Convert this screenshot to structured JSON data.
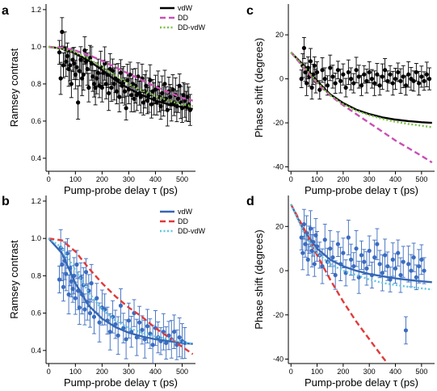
{
  "chart_data": [
    {
      "panel": "a",
      "type": "scatter",
      "xlabel": "Pump-probe delay τ (ps)",
      "ylabel": "Ramsey contrast",
      "xlim": [
        -10,
        550
      ],
      "ylim": [
        0.33,
        1.23
      ],
      "xticks": [
        0,
        100,
        200,
        300,
        400,
        500
      ],
      "yticks": [
        0.4,
        0.6,
        0.8,
        1.0,
        1.2
      ],
      "ytick_labels": [
        "0.4",
        "0.6",
        "0.8",
        "1.0",
        "1.2"
      ],
      "legend_position": "top-right",
      "marker_color": "#000000",
      "series": [
        {
          "name": "vdW",
          "color": "#000000",
          "dash": "solid",
          "x": [
            0,
            50,
            100,
            150,
            200,
            250,
            300,
            350,
            400,
            450,
            500,
            540
          ],
          "y": [
            1.0,
            0.99,
            0.965,
            0.925,
            0.875,
            0.82,
            0.775,
            0.74,
            0.71,
            0.69,
            0.675,
            0.665
          ]
        },
        {
          "name": "DD",
          "color": "#c94fb4",
          "dash": "dashed",
          "x": [
            0,
            50,
            100,
            150,
            200,
            250,
            300,
            350,
            400,
            450,
            500,
            540
          ],
          "y": [
            1.0,
            0.995,
            0.98,
            0.955,
            0.925,
            0.89,
            0.855,
            0.82,
            0.785,
            0.755,
            0.725,
            0.71
          ]
        },
        {
          "name": "DD-vdW",
          "color": "#7cc242",
          "dash": "dotted",
          "x": [
            0,
            50,
            100,
            150,
            200,
            250,
            300,
            350,
            400,
            450,
            500,
            540
          ],
          "y": [
            1.0,
            0.99,
            0.97,
            0.935,
            0.89,
            0.845,
            0.8,
            0.765,
            0.735,
            0.71,
            0.69,
            0.68
          ]
        }
      ],
      "points": {
        "x": [
          40,
          45,
          50,
          55,
          60,
          65,
          70,
          75,
          80,
          85,
          90,
          95,
          100,
          105,
          110,
          115,
          120,
          125,
          130,
          135,
          140,
          145,
          150,
          155,
          160,
          165,
          170,
          175,
          180,
          185,
          190,
          195,
          200,
          205,
          210,
          215,
          220,
          225,
          230,
          235,
          240,
          245,
          250,
          255,
          260,
          265,
          270,
          275,
          280,
          285,
          290,
          295,
          300,
          305,
          310,
          315,
          320,
          325,
          330,
          335,
          340,
          345,
          350,
          355,
          360,
          365,
          370,
          375,
          380,
          385,
          390,
          395,
          400,
          405,
          410,
          415,
          420,
          425,
          430,
          435,
          440,
          445,
          450,
          455,
          460,
          465,
          470,
          475,
          480,
          485,
          490,
          495,
          500,
          505,
          510,
          515,
          520,
          525,
          530
        ],
        "y": [
          0.97,
          0.83,
          1.08,
          0.9,
          0.99,
          0.92,
          0.95,
          0.88,
          0.9,
          0.8,
          0.93,
          0.91,
          0.85,
          0.89,
          0.7,
          0.87,
          0.93,
          0.83,
          0.85,
          0.98,
          0.92,
          0.88,
          0.78,
          0.94,
          0.91,
          0.84,
          0.8,
          0.78,
          0.83,
          0.86,
          0.79,
          0.89,
          0.78,
          0.86,
          0.91,
          0.8,
          0.85,
          0.75,
          0.88,
          0.78,
          0.87,
          0.8,
          0.83,
          0.76,
          0.82,
          0.73,
          0.86,
          0.79,
          0.81,
          0.76,
          0.67,
          0.82,
          0.77,
          0.85,
          0.74,
          0.8,
          0.72,
          0.79,
          0.74,
          0.84,
          0.75,
          0.73,
          0.83,
          0.7,
          0.76,
          0.79,
          0.71,
          0.74,
          0.82,
          0.69,
          0.76,
          0.72,
          0.77,
          0.7,
          0.78,
          0.73,
          0.68,
          0.75,
          0.71,
          0.8,
          0.72,
          0.66,
          0.76,
          0.73,
          0.69,
          0.77,
          0.7,
          0.74,
          0.68,
          0.72,
          0.79,
          0.7,
          0.67,
          0.74,
          0.71,
          0.68,
          0.73,
          0.69,
          0.66
        ],
        "err": 0.08
      }
    },
    {
      "panel": "b",
      "type": "scatter",
      "xlabel": "Pump-probe delay τ (ps)",
      "ylabel": "Ramsey contrast",
      "xlim": [
        -10,
        550
      ],
      "ylim": [
        0.33,
        1.23
      ],
      "xticks": [
        0,
        100,
        200,
        300,
        400,
        500
      ],
      "yticks": [
        0.4,
        0.6,
        0.8,
        1.0,
        1.2
      ],
      "ytick_labels": [
        "0.4",
        "0.6",
        "0.8",
        "1.0",
        "1.2"
      ],
      "legend_position": "top-right",
      "marker_color": "#3a6cc0",
      "series": [
        {
          "name": "vdW",
          "color": "#3467b5",
          "dash": "solid",
          "x": [
            0,
            50,
            100,
            150,
            200,
            250,
            300,
            350,
            400,
            450,
            500,
            540
          ],
          "y": [
            1.0,
            0.92,
            0.76,
            0.64,
            0.57,
            0.525,
            0.495,
            0.475,
            0.46,
            0.45,
            0.44,
            0.435
          ]
        },
        {
          "name": "DD",
          "color": "#e03a3a",
          "dash": "dashed",
          "x": [
            0,
            50,
            100,
            150,
            200,
            250,
            300,
            350,
            400,
            450,
            500,
            540
          ],
          "y": [
            1.0,
            0.99,
            0.93,
            0.84,
            0.76,
            0.69,
            0.63,
            0.58,
            0.52,
            0.47,
            0.42,
            0.38
          ]
        },
        {
          "name": "DD-vdW",
          "color": "#5fc6e0",
          "dash": "dotted",
          "x": [
            0,
            50,
            100,
            150,
            200,
            250,
            300,
            350,
            400,
            450,
            500,
            540
          ],
          "y": [
            1.0,
            0.95,
            0.83,
            0.71,
            0.62,
            0.56,
            0.52,
            0.495,
            0.475,
            0.46,
            0.445,
            0.435
          ]
        }
      ],
      "points": {
        "x": [
          40,
          45,
          50,
          55,
          60,
          65,
          70,
          75,
          80,
          85,
          90,
          95,
          100,
          105,
          110,
          115,
          120,
          125,
          130,
          135,
          140,
          145,
          150,
          155,
          160,
          170,
          180,
          190,
          200,
          210,
          220,
          230,
          240,
          250,
          260,
          270,
          280,
          290,
          300,
          310,
          320,
          330,
          340,
          350,
          360,
          370,
          380,
          390,
          400,
          410,
          420,
          430,
          440,
          450,
          460,
          470,
          480,
          490,
          500,
          510
        ],
        "y": [
          0.78,
          0.95,
          0.86,
          0.74,
          0.88,
          0.81,
          0.92,
          0.7,
          0.84,
          0.77,
          0.73,
          0.8,
          0.68,
          0.86,
          0.72,
          0.63,
          0.79,
          0.7,
          0.75,
          0.62,
          0.82,
          0.66,
          0.72,
          0.6,
          0.76,
          0.58,
          0.68,
          0.55,
          0.63,
          0.62,
          0.56,
          0.5,
          0.58,
          0.54,
          0.48,
          0.64,
          0.52,
          0.46,
          0.56,
          0.5,
          0.6,
          0.47,
          0.55,
          0.51,
          0.46,
          0.53,
          0.49,
          0.43,
          0.52,
          0.47,
          0.45,
          0.5,
          0.44,
          0.48,
          0.46,
          0.5,
          0.43,
          0.47,
          0.45,
          0.44
        ],
        "err": 0.09
      }
    },
    {
      "panel": "c",
      "type": "scatter",
      "xlabel": "Pump-probe delay τ (ps)",
      "ylabel": "Phase shift (degrees)",
      "xlim": [
        -10,
        550
      ],
      "ylim": [
        -42,
        34
      ],
      "xticks": [
        0,
        100,
        200,
        300,
        400,
        500
      ],
      "yticks": [
        -40,
        -20,
        0,
        20
      ],
      "ytick_labels": [
        "-40",
        "-20",
        "0",
        "20"
      ],
      "legend_position": "top-right",
      "marker_color": "#000000",
      "series": [
        {
          "name": "vdW",
          "color": "#000000",
          "dash": "solid",
          "x": [
            0,
            50,
            100,
            150,
            200,
            250,
            300,
            350,
            400,
            450,
            500,
            540
          ],
          "y": [
            12,
            6,
            -1,
            -7,
            -11,
            -14,
            -16,
            -17.5,
            -18.5,
            -19.2,
            -19.7,
            -20
          ]
        },
        {
          "name": "DD",
          "color": "#c94fb4",
          "dash": "dashed",
          "x": [
            0,
            50,
            100,
            150,
            200,
            250,
            300,
            350,
            400,
            450,
            500,
            540
          ],
          "y": [
            12,
            5,
            -2,
            -7.5,
            -12,
            -16,
            -20,
            -24,
            -28,
            -31.5,
            -35,
            -38
          ]
        },
        {
          "name": "DD-vdW",
          "color": "#7cc242",
          "dash": "dotted",
          "x": [
            0,
            50,
            100,
            150,
            200,
            250,
            300,
            350,
            400,
            450,
            500,
            540
          ],
          "y": [
            12,
            5.5,
            -1.5,
            -7.5,
            -11.5,
            -14.5,
            -16.5,
            -18.2,
            -19.5,
            -20.5,
            -21.3,
            -22
          ]
        }
      ],
      "points": {
        "x": [
          40,
          45,
          50,
          55,
          60,
          65,
          70,
          75,
          80,
          85,
          90,
          95,
          100,
          110,
          120,
          130,
          140,
          150,
          160,
          170,
          180,
          190,
          200,
          210,
          220,
          230,
          240,
          250,
          260,
          270,
          280,
          290,
          300,
          310,
          320,
          330,
          340,
          350,
          360,
          370,
          380,
          390,
          400,
          410,
          420,
          430,
          440,
          450,
          460,
          470,
          480,
          490,
          500,
          510,
          520,
          530
        ],
        "y": [
          0,
          6,
          14,
          3,
          -2,
          5,
          1,
          8,
          -4,
          2,
          6,
          -1,
          3,
          -5,
          4,
          0,
          -3,
          5,
          1,
          -2,
          4,
          -1,
          2,
          -4,
          3,
          0,
          -2,
          4,
          1,
          -3,
          2,
          -1,
          3,
          0,
          -2,
          2,
          -3,
          1,
          4,
          -1,
          2,
          -2,
          0,
          3,
          -1,
          1,
          -3,
          2,
          0,
          -1,
          3,
          -2,
          1,
          -1,
          2,
          0
        ],
        "err": 5
      }
    },
    {
      "panel": "d",
      "type": "scatter",
      "xlabel": "Pump-probe delay τ (ps)",
      "ylabel": "Phase shift (degrees)",
      "xlim": [
        -10,
        550
      ],
      "ylim": [
        -42,
        34
      ],
      "xticks": [
        0,
        100,
        200,
        300,
        400,
        500
      ],
      "yticks": [
        -40,
        -20,
        0,
        20
      ],
      "ytick_labels": [
        "-40",
        "-20",
        "0",
        "20"
      ],
      "legend_position": "top-right",
      "marker_color": "#3a6cc0",
      "series": [
        {
          "name": "vdW",
          "color": "#3467b5",
          "dash": "solid",
          "x": [
            0,
            50,
            100,
            150,
            200,
            250,
            300,
            350,
            400,
            450,
            500,
            540
          ],
          "y": [
            30,
            18,
            10,
            5,
            2,
            0,
            -1.5,
            -2.5,
            -3.5,
            -4.2,
            -4.8,
            -5.2
          ]
        },
        {
          "name": "DD",
          "color": "#e03a3a",
          "dash": "dashed",
          "x": [
            0,
            50,
            100,
            150,
            200,
            250,
            300,
            350,
            370
          ],
          "y": [
            30,
            19,
            7,
            -4,
            -14,
            -23,
            -31,
            -39,
            -42
          ]
        },
        {
          "name": "DD-vdW",
          "color": "#5fc6e0",
          "dash": "dotted",
          "x": [
            0,
            50,
            100,
            150,
            200,
            250,
            300,
            350,
            400,
            450,
            500,
            540
          ],
          "y": [
            30,
            17,
            8,
            3,
            0,
            -2,
            -4,
            -5.5,
            -6.5,
            -7.3,
            -8,
            -8.5
          ]
        }
      ],
      "points": {
        "x": [
          40,
          45,
          50,
          55,
          60,
          65,
          70,
          75,
          80,
          85,
          90,
          95,
          100,
          110,
          120,
          130,
          140,
          150,
          160,
          170,
          180,
          190,
          200,
          210,
          220,
          230,
          240,
          250,
          260,
          270,
          280,
          290,
          300,
          310,
          320,
          330,
          340,
          350,
          360,
          370,
          380,
          390,
          400,
          410,
          420,
          430,
          440,
          450,
          460,
          470,
          480,
          490,
          500,
          510
        ],
        "y": [
          15,
          8,
          21,
          12,
          17,
          5,
          14,
          19,
          9,
          13,
          3,
          16,
          11,
          7,
          2,
          14,
          4,
          10,
          6,
          -2,
          12,
          3,
          8,
          -1,
          15,
          5,
          2,
          10,
          -3,
          7,
          4,
          1,
          9,
          -2,
          6,
          12,
          3,
          -1,
          7,
          2,
          -4,
          5,
          1,
          8,
          -2,
          4,
          -27,
          3,
          0,
          6,
          -3,
          2,
          5,
          0
        ],
        "err": 7
      }
    }
  ]
}
